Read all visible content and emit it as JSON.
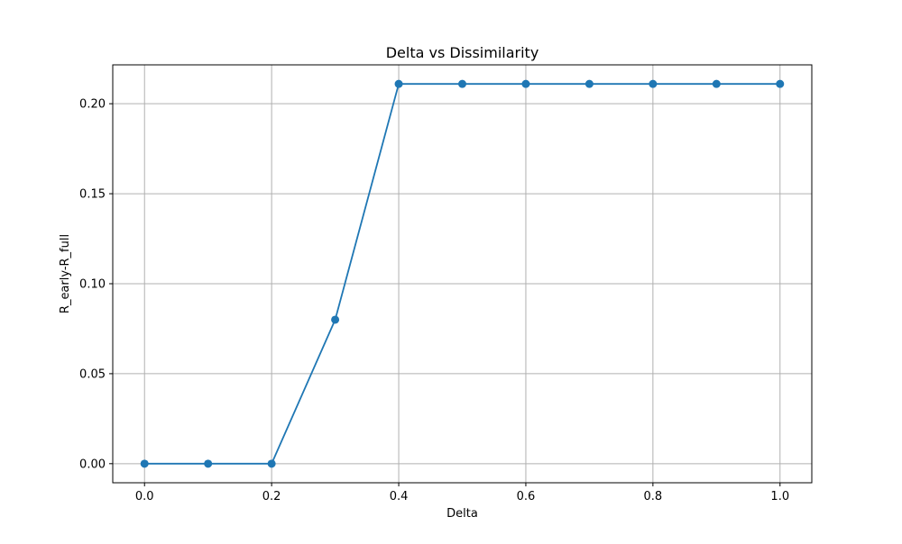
{
  "chart_data": {
    "type": "line",
    "title": "Delta vs Dissimilarity",
    "xlabel": "Delta",
    "ylabel": "R_early-R_full",
    "xlim": [
      -0.05,
      1.05
    ],
    "ylim": [
      -0.0106,
      0.2216
    ],
    "x_ticks": [
      "0.0",
      "0.2",
      "0.4",
      "0.6",
      "0.8",
      "1.0"
    ],
    "y_ticks": [
      "0.00",
      "0.05",
      "0.10",
      "0.15",
      "0.20"
    ],
    "x_tick_values": [
      0.0,
      0.2,
      0.4,
      0.6,
      0.8,
      1.0
    ],
    "y_tick_values": [
      0.0,
      0.05,
      0.1,
      0.15,
      0.2
    ],
    "grid": true,
    "series": [
      {
        "color": "#1f77b4",
        "marker": "circle",
        "x": [
          0.0,
          0.1,
          0.2,
          0.3,
          0.4,
          0.5,
          0.6,
          0.7,
          0.8,
          0.9,
          1.0
        ],
        "y": [
          0.0,
          0.0,
          0.0,
          0.08,
          0.211,
          0.211,
          0.211,
          0.211,
          0.211,
          0.211,
          0.211
        ]
      }
    ]
  }
}
